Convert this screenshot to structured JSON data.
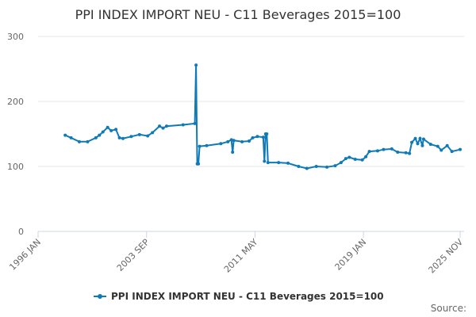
{
  "chart_data": {
    "type": "line",
    "title": "PPI INDEX IMPORT NEU - C11 Beverages 2015=100",
    "source": "Source:",
    "x": [
      "1997 DEC",
      "1998 MAY",
      "1998 DEC",
      "1999 JUL",
      "2000 FEB",
      "2000 MAY",
      "2000 AUG",
      "2000 DEC",
      "2001 MAR",
      "2001 JUL",
      "2001 OCT",
      "2002 JAN",
      "2002 AUG",
      "2003 MAR",
      "2003 OCT",
      "2004 FEB",
      "2004 AUG",
      "2004 NOV",
      "2005 FEB",
      "2006 APR",
      "2007 FEB",
      "2007 MAR",
      "2007 APR",
      "2007 MAY",
      "2007 JUN",
      "2007 DEC",
      "2008 DEC",
      "2009 JUN",
      "2009 SEP",
      "2009 OCT",
      "2009 NOV",
      "2010 JUN",
      "2010 DEC",
      "2011 MAR",
      "2011 JUL",
      "2011 DEC",
      "2012 JAN",
      "2012 FEB",
      "2012 MAR",
      "2012 APR",
      "2013 JAN",
      "2013 SEP",
      "2014 JUN",
      "2015 JAN",
      "2015 SEP",
      "2016 JUN",
      "2017 JAN",
      "2017 JUN",
      "2017 OCT",
      "2018 JAN",
      "2018 JUN",
      "2018 DEC",
      "2019 MAR",
      "2019 JUN",
      "2020 JAN",
      "2020 JUN",
      "2021 JAN",
      "2021 JUN",
      "2022 JAN",
      "2022 APR",
      "2022 JUN",
      "2022 SEP",
      "2022 NOV",
      "2023 JAN",
      "2023 MAR",
      "2023 APR",
      "2023 OCT",
      "2024 APR",
      "2024 JUL",
      "2024 DEC",
      "2025 APR",
      "2025 NOV"
    ],
    "series": [
      {
        "name": "PPI INDEX IMPORT NEU - C11 Beverages 2015=100",
        "color": "#0f7ab8",
        "values": [
          148,
          144,
          138,
          138,
          144,
          148,
          153,
          160,
          155,
          157,
          144,
          143,
          146,
          149,
          147,
          152,
          162,
          159,
          162,
          164,
          166,
          256,
          104,
          104,
          131,
          132,
          135,
          138,
          141,
          122,
          140,
          138,
          139,
          144,
          146,
          145,
          108,
          150,
          150,
          106,
          106,
          105,
          100,
          97,
          100,
          99,
          101,
          106,
          112,
          114,
          111,
          110,
          115,
          123,
          124,
          126,
          127,
          122,
          121,
          120,
          137,
          143,
          135,
          143,
          132,
          142,
          134,
          131,
          125,
          132,
          123,
          126
        ]
      }
    ],
    "xlim": [
      "1996 JAN",
      "2025 NOV"
    ],
    "xticks": [
      "1996 JAN",
      "2003 SEP",
      "2011 MAY",
      "2019 JAN",
      "2025 NOV"
    ],
    "ylim": [
      0,
      300
    ],
    "yticks": [
      0,
      100,
      200,
      300
    ],
    "grid": true
  }
}
